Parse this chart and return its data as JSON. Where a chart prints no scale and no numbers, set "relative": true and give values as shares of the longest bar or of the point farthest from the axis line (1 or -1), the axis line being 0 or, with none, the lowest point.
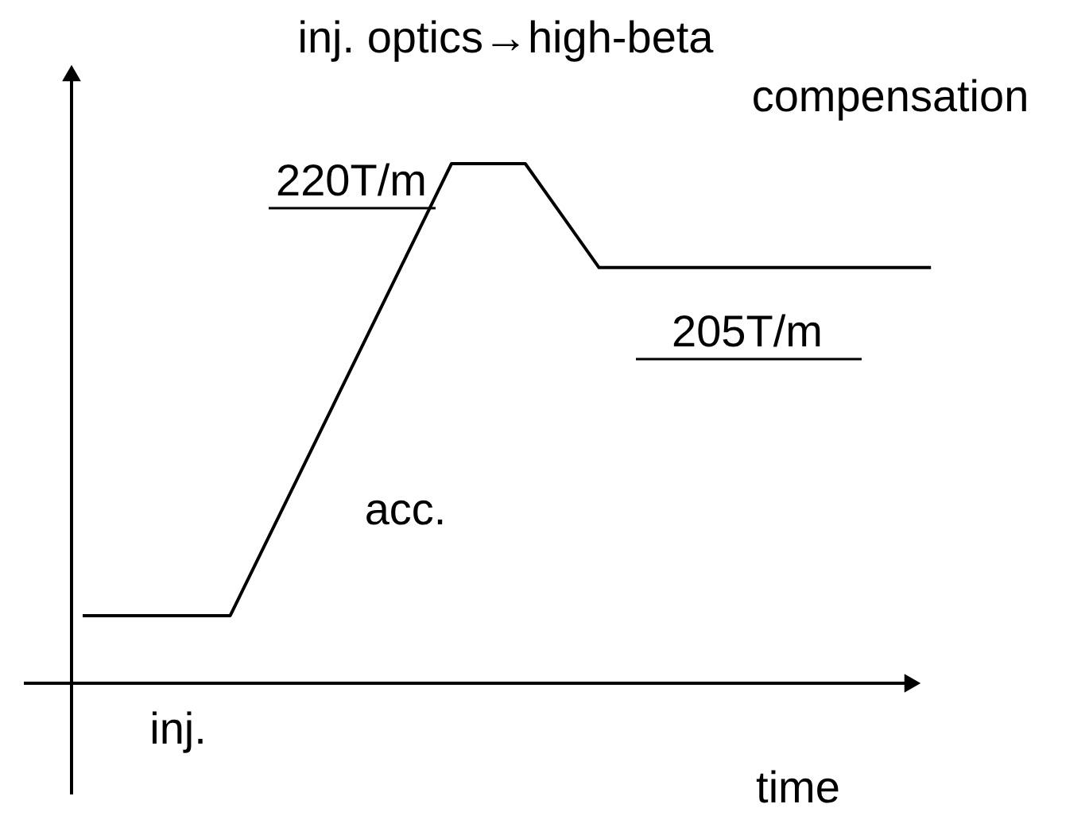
{
  "chart_data": {
    "type": "line",
    "relative": true,
    "xlabel": "time",
    "categories": [
      null,
      null,
      null,
      null,
      null,
      null,
      null,
      null,
      null,
      null,
      null,
      null,
      null,
      null,
      null,
      null,
      null,
      null,
      null,
      null,
      null,
      null,
      null,
      null
    ],
    "series": [
      {
        "color": "#000000",
        "values": [
          0.13,
          0.13,
          0.13,
          0.13,
          0.13,
          0.275,
          0.42,
          0.565,
          0.71,
          0.855,
          1,
          1,
          1,
          0.9,
          0.8,
          0.8,
          0.8,
          0.8,
          0.8,
          0.8,
          0.8,
          0.8,
          0.8,
          0.8
        ]
      }
    ],
    "annotations": [
      "inj. optics→high-beta compensation",
      "220T/m",
      "205T/m",
      "acc.",
      "inj."
    ],
    "marker": "none",
    "line_style": "solid"
  }
}
